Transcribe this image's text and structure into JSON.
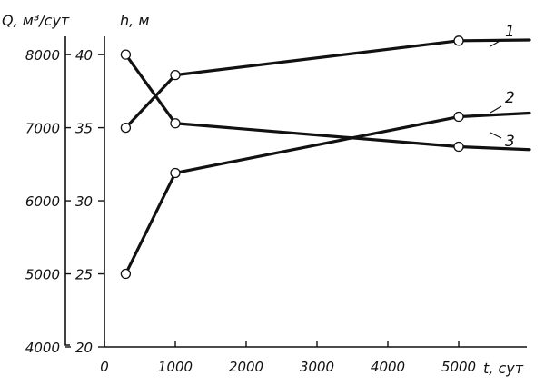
{
  "chart_data": {
    "type": "line",
    "axes": {
      "x": {
        "label": "t, сут",
        "range": [
          0,
          6000
        ],
        "ticks": [
          0,
          1000,
          2000,
          3000,
          4000,
          5000
        ]
      },
      "y_left_outer": {
        "label": "Q, м³/сут",
        "range": [
          4000,
          8250
        ],
        "ticks": [
          4000,
          5000,
          6000,
          7000,
          8000
        ]
      },
      "y_left_inner": {
        "label": "h, м",
        "range": [
          20,
          41.25
        ],
        "ticks": [
          20,
          25,
          30,
          35,
          40
        ]
      }
    },
    "series": [
      {
        "name": "1",
        "axis": "y_left_outer",
        "x": [
          300,
          1000,
          5000,
          6000
        ],
        "values": [
          7000,
          7720,
          8190,
          8200
        ],
        "markers": [
          true,
          true,
          true,
          false
        ]
      },
      {
        "name": "2",
        "axis": "y_left_outer",
        "x": [
          300,
          1000,
          5000,
          6000
        ],
        "values": [
          5000,
          6380,
          7150,
          7200
        ],
        "markers": [
          true,
          true,
          true,
          false
        ]
      },
      {
        "name": "3",
        "axis": "y_left_inner",
        "x": [
          300,
          1000,
          5000,
          6000
        ],
        "values": [
          40,
          35.3,
          33.7,
          33.5
        ],
        "markers": [
          true,
          true,
          true,
          false
        ]
      }
    ],
    "grid": false,
    "legend": "none"
  }
}
